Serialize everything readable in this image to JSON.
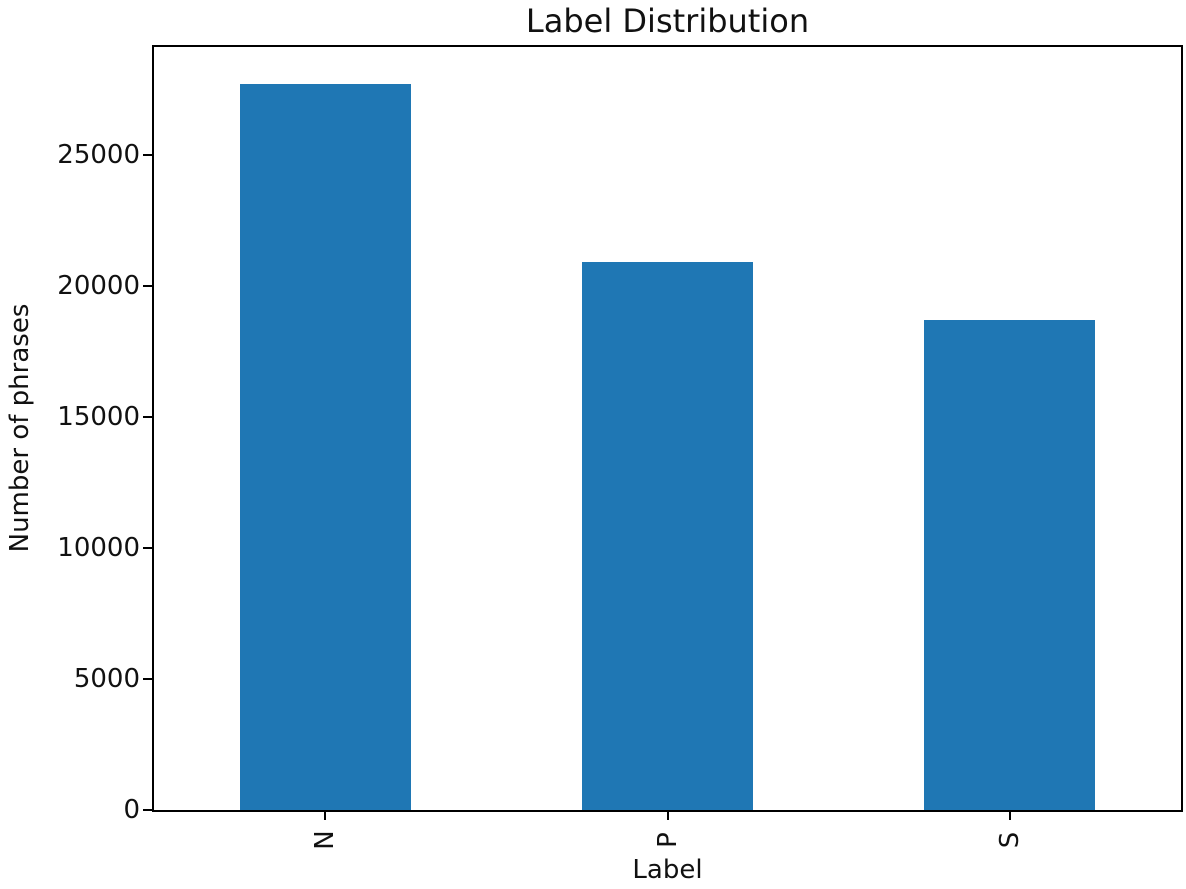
{
  "chart_data": {
    "type": "bar",
    "title": "Label Distribution",
    "xlabel": "Label",
    "ylabel": "Number of phrases",
    "categories": [
      "N",
      "P",
      "S"
    ],
    "values": [
      27700,
      20900,
      18700
    ],
    "yticks": [
      0,
      5000,
      10000,
      15000,
      20000,
      25000
    ],
    "ylim": [
      0,
      29100
    ],
    "bar_color": "#1f77b4",
    "bar_width_fraction": 0.5,
    "x_tick_rotation": 90,
    "grid": false,
    "legend_position": "none"
  }
}
